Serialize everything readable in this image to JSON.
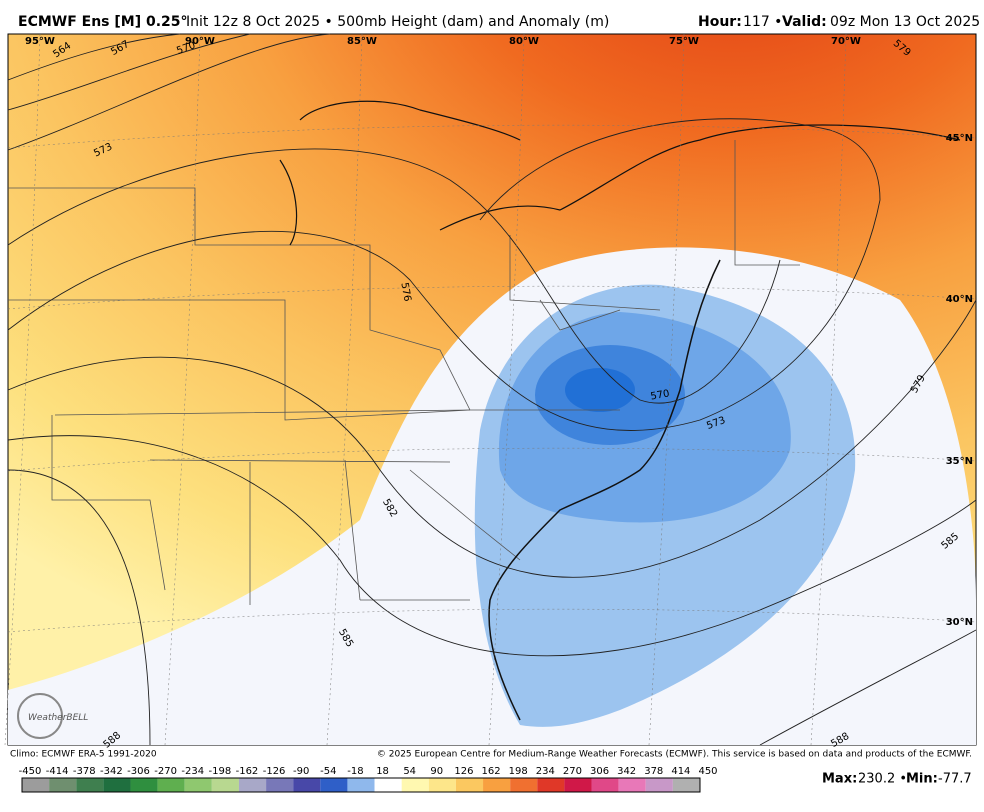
{
  "header": {
    "title": "ECMWF Ens [M] 0.25°",
    "subtitle": "Init 12z 8 Oct 2025 • 500mb Height (dam) and Anomaly (m)",
    "hour_label": "Hour:",
    "hour_value": "117 •",
    "valid_label": "Valid:",
    "valid_value": "09z Mon 13 Oct 2025"
  },
  "map": {
    "lon_labels": [
      "95°W",
      "90°W",
      "85°W",
      "80°W",
      "75°W",
      "70°W"
    ],
    "lat_labels": [
      "45°N",
      "40°N",
      "35°N",
      "30°N"
    ],
    "contour_labels": [
      "564",
      "567",
      "570",
      "573",
      "576",
      "579",
      "582",
      "585",
      "588",
      "570",
      "573",
      "579",
      "585",
      "588"
    ],
    "logo": "WeatherBELL"
  },
  "footer": {
    "climo": "Climo: ECMWF ERA-5 1991-2020",
    "copyright": "© 2025 European Centre for Medium-Range Weather Forecasts (ECMWF). This service is based on data and products of the ECMWF."
  },
  "colorbar": {
    "ticks": [
      "-450",
      "-414",
      "-378",
      "-342",
      "-306",
      "-270",
      "-234",
      "-198",
      "-162",
      "-126",
      "-90",
      "-54",
      "-18",
      "18",
      "54",
      "90",
      "126",
      "162",
      "198",
      "234",
      "270",
      "306",
      "342",
      "378",
      "414",
      "450"
    ],
    "colors": [
      "#9c9c9c",
      "#6f8f6f",
      "#3f7f4f",
      "#1f6f3f",
      "#2f8f3f",
      "#5faf4f",
      "#8fc86f",
      "#b8d890",
      "#a8a8c8",
      "#7878b8",
      "#4848a8",
      "#2f5fc8",
      "#8fb8ec",
      "#ffffff",
      "#fff8b0",
      "#fde68a",
      "#fbc860",
      "#f8a040",
      "#f07030",
      "#e03828",
      "#d01848",
      "#e04888",
      "#e878b8",
      "#c898c8",
      "#b0b0b0"
    ],
    "max_label": "Max:",
    "max_value": "230.2 •",
    "min_label": "Min:",
    "min_value": "-77.7"
  }
}
